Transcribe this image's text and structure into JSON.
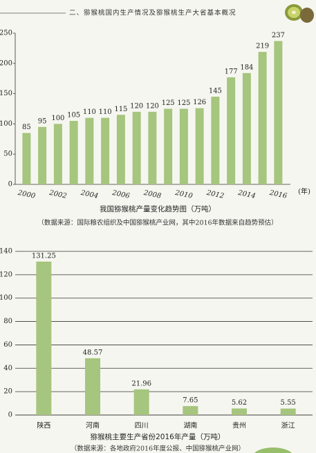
{
  "header": {
    "title": "二、猕猴桃国内生产情况及猕猴桃生产大省基本概况"
  },
  "chart_data": [
    {
      "type": "bar",
      "title": "我国猕猴桃产量变化趋势图（万吨）",
      "subtitle": "（数据来源：国际粮农组织及中国猕猴桃产业网，其中2016年数据来自趋势预估）",
      "xlabel": "(年)",
      "categories": [
        "2000",
        null,
        "2002",
        null,
        "2004",
        null,
        "2006",
        null,
        "2008",
        null,
        "2010",
        null,
        "2012",
        null,
        "2014",
        null,
        "2016"
      ],
      "values": [
        85,
        95,
        100,
        105,
        110,
        110,
        115,
        120,
        120,
        125,
        125,
        126,
        145,
        177,
        184,
        219,
        237
      ],
      "color": "#a6c57e",
      "ylim": [
        0,
        250
      ],
      "yticks": [
        0,
        50,
        100,
        150,
        200,
        250
      ],
      "grid": false
    },
    {
      "type": "bar",
      "title": "猕猴桃主要生产省份2016年产量（万吨）",
      "subtitle": "（数据来源：各地政府2016年度公报、中国猕猴桃产业网）",
      "categories": [
        "陕西",
        "河南",
        "四川",
        "湖南",
        "贵州",
        "浙江"
      ],
      "values": [
        131.25,
        48.57,
        21.96,
        7.65,
        5.62,
        5.55
      ],
      "color": "#a6c57e",
      "ylim": [
        0,
        140
      ],
      "yticks": [
        0,
        20,
        40,
        60,
        80,
        100,
        120,
        140
      ],
      "grid": true
    }
  ]
}
